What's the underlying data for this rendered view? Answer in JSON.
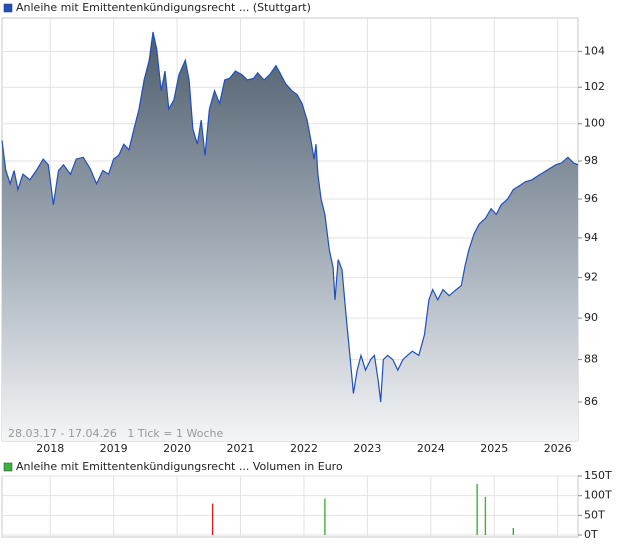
{
  "chart_data": [
    {
      "type": "line",
      "log_scale": true,
      "grid": true,
      "legend": "top-left",
      "annotation": "28.03.17 - 17.04.26   1 Tick = 1 Woche",
      "xlim": [
        2017.24,
        2026.32
      ],
      "xticks": [
        2018,
        2019,
        2020,
        2021,
        2022,
        2023,
        2024,
        2025,
        2026
      ],
      "ylim": [
        84.2,
        105.9
      ],
      "yticks": [
        86,
        88,
        90,
        92,
        94,
        96,
        98,
        100,
        102,
        104
      ],
      "x": [
        2017.24,
        2017.3,
        2017.37,
        2017.43,
        2017.49,
        2017.57,
        2017.68,
        2017.78,
        2017.89,
        2017.97,
        2018.05,
        2018.13,
        2018.21,
        2018.32,
        2018.41,
        2018.52,
        2018.63,
        2018.73,
        2018.83,
        2018.92,
        2019.0,
        2019.08,
        2019.16,
        2019.24,
        2019.32,
        2019.4,
        2019.48,
        2019.56,
        2019.62,
        2019.68,
        2019.75,
        2019.81,
        2019.87,
        2019.95,
        2020.03,
        2020.13,
        2020.19,
        2020.25,
        2020.32,
        2020.38,
        2020.44,
        2020.51,
        2020.59,
        2020.67,
        2020.75,
        2020.83,
        2020.92,
        2021.02,
        2021.11,
        2021.21,
        2021.27,
        2021.37,
        2021.46,
        2021.56,
        2021.62,
        2021.71,
        2021.81,
        2021.89,
        2021.97,
        2022.05,
        2022.11,
        2022.16,
        2022.19,
        2022.22,
        2022.27,
        2022.33,
        2022.4,
        2022.46,
        2022.49,
        2022.54,
        2022.6,
        2022.67,
        2022.73,
        2022.78,
        2022.84,
        2022.9,
        2022.97,
        2023.05,
        2023.11,
        2023.17,
        2023.21,
        2023.25,
        2023.32,
        2023.4,
        2023.48,
        2023.56,
        2023.63,
        2023.71,
        2023.81,
        2023.9,
        2023.97,
        2024.03,
        2024.11,
        2024.19,
        2024.29,
        2024.4,
        2024.48,
        2024.54,
        2024.6,
        2024.68,
        2024.76,
        2024.86,
        2024.95,
        2025.03,
        2025.11,
        2025.21,
        2025.3,
        2025.4,
        2025.49,
        2025.59,
        2025.68,
        2025.78,
        2025.87,
        2025.97,
        2026.06,
        2026.16,
        2026.25,
        2026.32
      ],
      "series": [
        {
          "name": "Anleihe mit Emittentenkündigungsrecht ... (Stuttgart)",
          "color": "#1f4fbf",
          "values": [
            99.1,
            97.5,
            96.8,
            97.5,
            96.5,
            97.3,
            97.0,
            97.5,
            98.1,
            97.8,
            95.7,
            97.5,
            97.8,
            97.3,
            98.1,
            98.2,
            97.6,
            96.8,
            97.5,
            97.3,
            98.1,
            98.3,
            98.9,
            98.6,
            99.7,
            100.8,
            102.4,
            103.5,
            105.1,
            104.1,
            101.8,
            102.9,
            100.8,
            101.3,
            102.7,
            103.5,
            102.4,
            99.7,
            98.9,
            100.2,
            98.3,
            100.8,
            101.8,
            101.1,
            102.4,
            102.5,
            102.9,
            102.7,
            102.4,
            102.5,
            102.8,
            102.4,
            102.7,
            103.2,
            102.8,
            102.2,
            101.8,
            101.6,
            101.1,
            100.2,
            99.1,
            98.1,
            98.9,
            97.3,
            96.0,
            95.2,
            93.4,
            92.5,
            90.9,
            92.9,
            92.4,
            89.9,
            88.0,
            86.4,
            87.5,
            88.2,
            87.5,
            88.0,
            88.2,
            87.0,
            86.0,
            88.0,
            88.2,
            88.0,
            87.5,
            88.0,
            88.2,
            88.4,
            88.2,
            89.2,
            90.9,
            91.4,
            90.9,
            91.4,
            91.1,
            91.4,
            91.6,
            92.6,
            93.4,
            94.2,
            94.7,
            95.0,
            95.5,
            95.2,
            95.7,
            96.0,
            96.5,
            96.7,
            96.9,
            97.0,
            97.2,
            97.4,
            97.6,
            97.8,
            97.9,
            98.2,
            97.9,
            97.8
          ]
        }
      ]
    },
    {
      "type": "bar",
      "grid": true,
      "legend": "top-left",
      "xlim": [
        2017.24,
        2026.32
      ],
      "xticks": [
        2018,
        2019,
        2020,
        2021,
        2022,
        2023,
        2024,
        2025,
        2026
      ],
      "ylim": [
        -5,
        150
      ],
      "yticks": [
        {
          "value": 0,
          "label": "0T"
        },
        {
          "value": 50,
          "label": "50T"
        },
        {
          "value": 100,
          "label": "100T"
        },
        {
          "value": 150,
          "label": "150T"
        }
      ],
      "x": [
        2020.56,
        2022.33,
        2024.73,
        2024.86,
        2025.3
      ],
      "series": [
        {
          "name": "Anleihe mit Emittentenkündigungsrecht ... Volumen in Euro",
          "color": "#3cb33c",
          "values": [
            80,
            93,
            130,
            97,
            18
          ],
          "colors": [
            "#d02020",
            "#3cb33c",
            "#3cb33c",
            "#3cb33c",
            "#3cb33c"
          ]
        }
      ]
    }
  ]
}
